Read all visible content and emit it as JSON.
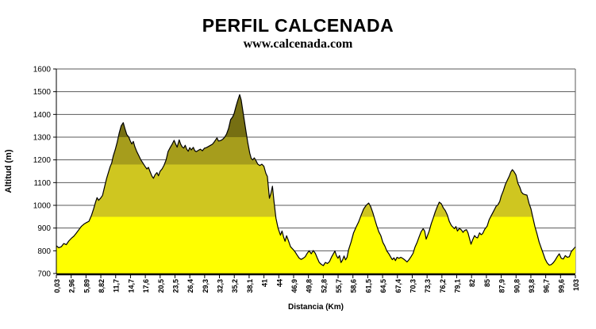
{
  "header": {
    "title": "PERFIL CALCENADA",
    "subtitle": "www.calcenada.com"
  },
  "chart_data": {
    "type": "area",
    "title": "PERFIL CALCENADA",
    "subtitle": "www.calcenada.com",
    "xlabel": "Distancia (Km)",
    "ylabel": "Altitud (m)",
    "ylim": [
      700,
      1600
    ],
    "yticks": [
      700,
      800,
      900,
      1000,
      1100,
      1200,
      1300,
      1400,
      1500,
      1600
    ],
    "xlim": [
      0.03,
      103
    ],
    "xtick_labels": [
      "0,03",
      "2,96",
      "5,89",
      "8,82",
      "11,7",
      "14,7",
      "17,6",
      "20,5",
      "23,5",
      "26,4",
      "29,3",
      "32,3",
      "35,2",
      "38,1",
      "41",
      "44",
      "46,9",
      "49,8",
      "52,8",
      "55,7",
      "58,6",
      "61,5",
      "64,5",
      "67,4",
      "70,3",
      "73,3",
      "76,2",
      "79,1",
      "82",
      "85",
      "87,9",
      "90,8",
      "93,8",
      "96,7",
      "99,6",
      "103"
    ],
    "grid": "horizontal",
    "legend": "none",
    "gridline_color": "#5a5a5a",
    "axis_color": "#000000",
    "outline_color": "#000000",
    "altitude_bands": [
      {
        "from": 700,
        "to": 950,
        "color": "#ffff00"
      },
      {
        "from": 950,
        "to": 1180,
        "color": "#cfc620"
      },
      {
        "from": 1180,
        "to": 1300,
        "color": "#a69d1c"
      },
      {
        "from": 1300,
        "to": 1600,
        "color": "#766f12"
      }
    ],
    "series": [
      {
        "name": "Altitud",
        "points_km_m": [
          [
            0.03,
            822
          ],
          [
            0.5,
            813
          ],
          [
            1,
            818
          ],
          [
            1.5,
            832
          ],
          [
            2,
            827
          ],
          [
            2.5,
            843
          ],
          [
            3,
            855
          ],
          [
            3.5,
            864
          ],
          [
            4,
            878
          ],
          [
            4.5,
            893
          ],
          [
            5,
            908
          ],
          [
            5.5,
            917
          ],
          [
            6,
            924
          ],
          [
            6.5,
            930
          ],
          [
            7,
            956
          ],
          [
            7.4,
            983
          ],
          [
            7.8,
            1014
          ],
          [
            8.1,
            1034
          ],
          [
            8.4,
            1022
          ],
          [
            8.8,
            1031
          ],
          [
            9.2,
            1044
          ],
          [
            9.6,
            1082
          ],
          [
            10,
            1118
          ],
          [
            10.4,
            1148
          ],
          [
            10.7,
            1170
          ],
          [
            11,
            1186
          ],
          [
            11.3,
            1216
          ],
          [
            11.7,
            1244
          ],
          [
            12.1,
            1278
          ],
          [
            12.5,
            1318
          ],
          [
            12.9,
            1350
          ],
          [
            13.3,
            1364
          ],
          [
            13.6,
            1340
          ],
          [
            14,
            1312
          ],
          [
            14.4,
            1300
          ],
          [
            14.7,
            1283
          ],
          [
            15,
            1270
          ],
          [
            15.3,
            1281
          ],
          [
            15.6,
            1258
          ],
          [
            16,
            1236
          ],
          [
            16.4,
            1218
          ],
          [
            16.8,
            1200
          ],
          [
            17.2,
            1186
          ],
          [
            17.6,
            1172
          ],
          [
            18,
            1160
          ],
          [
            18.3,
            1167
          ],
          [
            18.6,
            1150
          ],
          [
            19,
            1128
          ],
          [
            19.3,
            1119
          ],
          [
            19.6,
            1134
          ],
          [
            20,
            1144
          ],
          [
            20.3,
            1130
          ],
          [
            20.6,
            1149
          ],
          [
            21,
            1160
          ],
          [
            21.4,
            1176
          ],
          [
            21.8,
            1200
          ],
          [
            22.2,
            1237
          ],
          [
            22.6,
            1254
          ],
          [
            23,
            1269
          ],
          [
            23.4,
            1286
          ],
          [
            23.7,
            1270
          ],
          [
            24,
            1256
          ],
          [
            24.4,
            1288
          ],
          [
            24.7,
            1269
          ],
          [
            25,
            1257
          ],
          [
            25.3,
            1252
          ],
          [
            25.6,
            1264
          ],
          [
            25.9,
            1247
          ],
          [
            26.2,
            1238
          ],
          [
            26.5,
            1254
          ],
          [
            26.8,
            1244
          ],
          [
            27.2,
            1255
          ],
          [
            27.5,
            1240
          ],
          [
            27.8,
            1236
          ],
          [
            28.2,
            1242
          ],
          [
            28.6,
            1247
          ],
          [
            29,
            1240
          ],
          [
            29.4,
            1251
          ],
          [
            29.8,
            1254
          ],
          [
            30.2,
            1259
          ],
          [
            30.6,
            1264
          ],
          [
            31,
            1269
          ],
          [
            31.4,
            1280
          ],
          [
            31.9,
            1297
          ],
          [
            32.2,
            1283
          ],
          [
            32.6,
            1285
          ],
          [
            33,
            1290
          ],
          [
            33.4,
            1299
          ],
          [
            33.8,
            1314
          ],
          [
            34.2,
            1338
          ],
          [
            34.6,
            1377
          ],
          [
            35,
            1389
          ],
          [
            35.3,
            1404
          ],
          [
            35.7,
            1438
          ],
          [
            36,
            1460
          ],
          [
            36.4,
            1487
          ],
          [
            36.7,
            1464
          ],
          [
            37,
            1420
          ],
          [
            37.3,
            1377
          ],
          [
            37.6,
            1334
          ],
          [
            38,
            1276
          ],
          [
            38.4,
            1230
          ],
          [
            38.7,
            1206
          ],
          [
            39,
            1200
          ],
          [
            39.3,
            1209
          ],
          [
            39.6,
            1198
          ],
          [
            40,
            1181
          ],
          [
            40.4,
            1175
          ],
          [
            40.8,
            1181
          ],
          [
            41.2,
            1172
          ],
          [
            41.6,
            1141
          ],
          [
            41.9,
            1127
          ],
          [
            42.3,
            1031
          ],
          [
            42.6,
            1053
          ],
          [
            42.9,
            1084
          ],
          [
            43.2,
            1019
          ],
          [
            43.6,
            944
          ],
          [
            44,
            901
          ],
          [
            44.5,
            869
          ],
          [
            44.8,
            887
          ],
          [
            45.1,
            861
          ],
          [
            45.4,
            842
          ],
          [
            45.7,
            866
          ],
          [
            46,
            849
          ],
          [
            46.5,
            818
          ],
          [
            47,
            806
          ],
          [
            47.4,
            795
          ],
          [
            47.8,
            781
          ],
          [
            48.2,
            768
          ],
          [
            48.6,
            762
          ],
          [
            49,
            767
          ],
          [
            49.4,
            774
          ],
          [
            49.8,
            789
          ],
          [
            50.2,
            800
          ],
          [
            50.6,
            787
          ],
          [
            51,
            801
          ],
          [
            51.4,
            789
          ],
          [
            51.8,
            768
          ],
          [
            52.2,
            748
          ],
          [
            52.6,
            740
          ],
          [
            53,
            735
          ],
          [
            53.4,
            749
          ],
          [
            53.8,
            744
          ],
          [
            54.2,
            752
          ],
          [
            54.6,
            771
          ],
          [
            55,
            787
          ],
          [
            55.3,
            799
          ],
          [
            55.6,
            779
          ],
          [
            55.9,
            767
          ],
          [
            56.2,
            779
          ],
          [
            56.5,
            748
          ],
          [
            56.8,
            759
          ],
          [
            57.1,
            777
          ],
          [
            57.4,
            760
          ],
          [
            57.7,
            771
          ],
          [
            58,
            804
          ],
          [
            58.5,
            839
          ],
          [
            59,
            879
          ],
          [
            59.5,
            904
          ],
          [
            60,
            927
          ],
          [
            60.5,
            957
          ],
          [
            61,
            984
          ],
          [
            61.5,
            1000
          ],
          [
            62,
            1010
          ],
          [
            62.4,
            994
          ],
          [
            62.8,
            969
          ],
          [
            63.2,
            939
          ],
          [
            63.6,
            909
          ],
          [
            64,
            884
          ],
          [
            64.4,
            867
          ],
          [
            64.8,
            837
          ],
          [
            65.2,
            821
          ],
          [
            65.6,
            799
          ],
          [
            66,
            787
          ],
          [
            66.4,
            771
          ],
          [
            66.7,
            761
          ],
          [
            67,
            769
          ],
          [
            67.3,
            757
          ],
          [
            67.6,
            771
          ],
          [
            68,
            767
          ],
          [
            68.4,
            771
          ],
          [
            68.8,
            766
          ],
          [
            69.2,
            759
          ],
          [
            69.6,
            751
          ],
          [
            70,
            761
          ],
          [
            70.4,
            774
          ],
          [
            70.8,
            789
          ],
          [
            71.2,
            817
          ],
          [
            71.6,
            837
          ],
          [
            72,
            861
          ],
          [
            72.4,
            884
          ],
          [
            72.8,
            897
          ],
          [
            73.1,
            887
          ],
          [
            73.4,
            851
          ],
          [
            73.7,
            869
          ],
          [
            74,
            887
          ],
          [
            74.4,
            919
          ],
          [
            74.8,
            944
          ],
          [
            75.2,
            971
          ],
          [
            75.6,
            994
          ],
          [
            76,
            1014
          ],
          [
            76.4,
            1007
          ],
          [
            76.8,
            989
          ],
          [
            77.2,
            977
          ],
          [
            77.6,
            957
          ],
          [
            78,
            929
          ],
          [
            78.4,
            911
          ],
          [
            78.7,
            904
          ],
          [
            79,
            897
          ],
          [
            79.3,
            907
          ],
          [
            79.6,
            887
          ],
          [
            80,
            899
          ],
          [
            80.4,
            891
          ],
          [
            80.7,
            881
          ],
          [
            81,
            889
          ],
          [
            81.4,
            893
          ],
          [
            81.7,
            879
          ],
          [
            82,
            854
          ],
          [
            82.3,
            829
          ],
          [
            82.6,
            847
          ],
          [
            83,
            867
          ],
          [
            83.3,
            859
          ],
          [
            83.6,
            857
          ],
          [
            84,
            879
          ],
          [
            84.3,
            871
          ],
          [
            84.6,
            875
          ],
          [
            85,
            894
          ],
          [
            85.5,
            909
          ],
          [
            85.9,
            937
          ],
          [
            86.3,
            954
          ],
          [
            86.7,
            971
          ],
          [
            87,
            984
          ],
          [
            87.3,
            997
          ],
          [
            87.6,
            1001
          ],
          [
            88,
            1017
          ],
          [
            88.3,
            1041
          ],
          [
            88.7,
            1064
          ],
          [
            89.1,
            1091
          ],
          [
            89.5,
            1111
          ],
          [
            89.9,
            1129
          ],
          [
            90.2,
            1147
          ],
          [
            90.5,
            1157
          ],
          [
            90.8,
            1149
          ],
          [
            91.2,
            1134
          ],
          [
            91.6,
            1097
          ],
          [
            92,
            1079
          ],
          [
            92.3,
            1059
          ],
          [
            92.6,
            1051
          ],
          [
            93,
            1047
          ],
          [
            93.4,
            1045
          ],
          [
            93.8,
            1009
          ],
          [
            94.2,
            984
          ],
          [
            94.6,
            944
          ],
          [
            95,
            904
          ],
          [
            95.4,
            874
          ],
          [
            95.8,
            839
          ],
          [
            96.2,
            814
          ],
          [
            96.6,
            789
          ],
          [
            97,
            764
          ],
          [
            97.4,
            747
          ],
          [
            97.8,
            737
          ],
          [
            98.2,
            739
          ],
          [
            98.6,
            747
          ],
          [
            99,
            759
          ],
          [
            99.4,
            774
          ],
          [
            99.8,
            787
          ],
          [
            100.2,
            767
          ],
          [
            100.6,
            764
          ],
          [
            101,
            779
          ],
          [
            101.4,
            771
          ],
          [
            101.8,
            774
          ],
          [
            102.2,
            797
          ],
          [
            102.6,
            807
          ],
          [
            103,
            817
          ]
        ]
      }
    ]
  }
}
